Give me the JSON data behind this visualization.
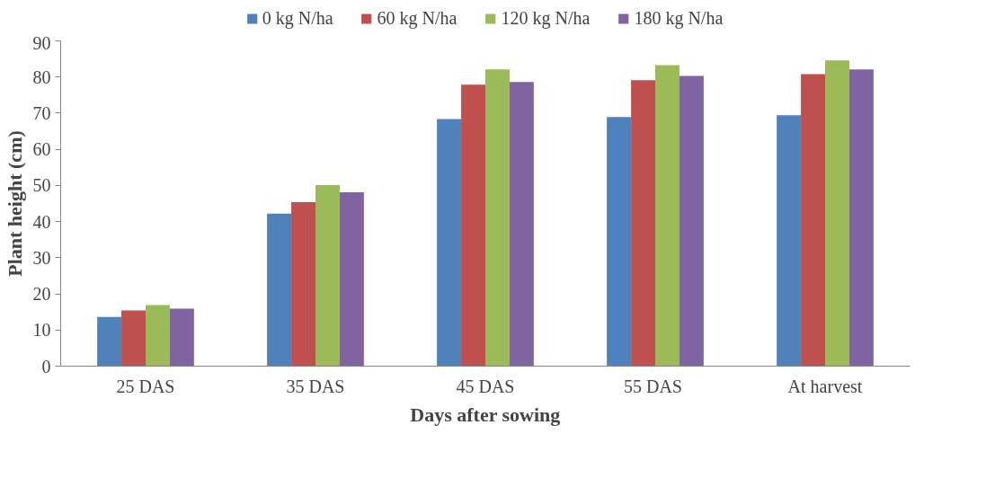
{
  "chart_data": {
    "type": "bar",
    "xlabel": "Days after sowing",
    "ylabel": "Plant height (cm)",
    "categories": [
      "25 DAS",
      "35 DAS",
      "45 DAS",
      "55  DAS",
      "At harvest"
    ],
    "series": [
      {
        "name": "0 kg N/ha",
        "color": "#4f81bd",
        "values": [
          13.6,
          42.2,
          68.4,
          68.9,
          69.4
        ]
      },
      {
        "name": "60 kg N/ha",
        "color": "#c0504d",
        "values": [
          15.4,
          45.4,
          77.9,
          79.1,
          80.8
        ]
      },
      {
        "name": "120 kg N/ha",
        "color": "#9bbb59",
        "values": [
          16.9,
          50.1,
          82.1,
          83.3,
          84.6
        ]
      },
      {
        "name": "180 kg N/ha",
        "color": "#8064a2",
        "values": [
          15.9,
          48.1,
          78.6,
          80.3,
          82.1
        ]
      }
    ],
    "ylim": [
      0,
      90
    ],
    "yticks": [
      0,
      10,
      20,
      30,
      40,
      50,
      60,
      70,
      80,
      90
    ],
    "grid": false,
    "legend": "top"
  }
}
